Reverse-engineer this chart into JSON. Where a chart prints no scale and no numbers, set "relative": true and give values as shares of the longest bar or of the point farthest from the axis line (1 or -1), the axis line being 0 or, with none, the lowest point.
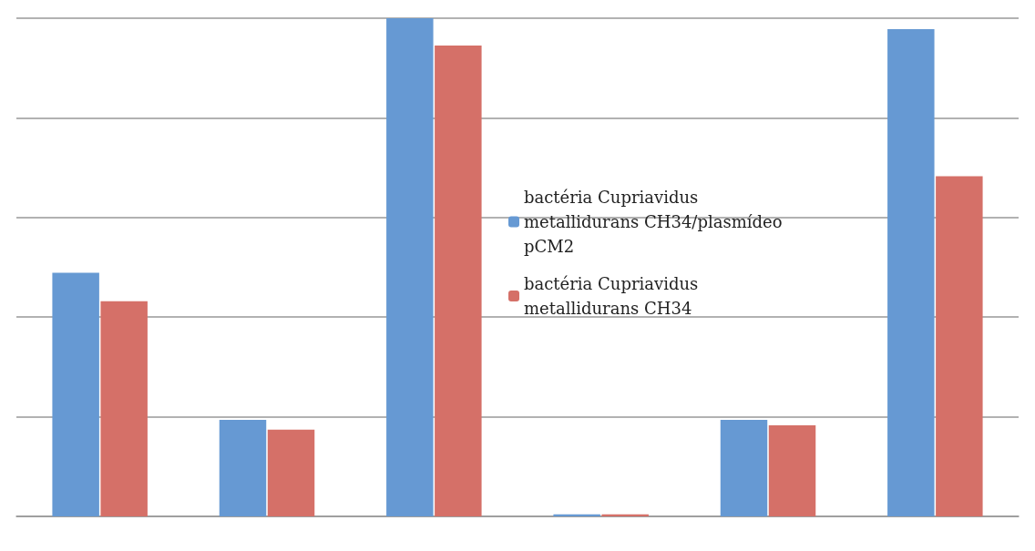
{
  "chart_data": {
    "type": "bar",
    "relative": true,
    "categories": [
      null,
      null,
      null,
      null,
      null,
      null
    ],
    "series": [
      {
        "name": "bactéria Cupriavidus metallidurans CH34/plasmídeo pCM2",
        "color": "#6699d3",
        "values": [
          0.489,
          0.194,
          1,
          0.004,
          0.194,
          0.978
        ]
      },
      {
        "name": "bactéria Cupriavidus metallidurans CH34",
        "color": "#d57068",
        "values": [
          0.432,
          0.174,
          0.945,
          0.004,
          0.183,
          0.683
        ]
      }
    ],
    "grid": "y",
    "legend": "right"
  }
}
